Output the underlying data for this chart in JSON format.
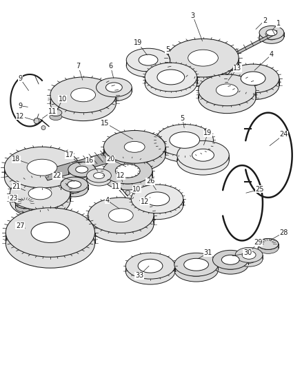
{
  "background_color": "#ffffff",
  "line_color": "#1a1a1a",
  "fig_width": 4.38,
  "fig_height": 5.33,
  "dpi": 100,
  "parts": {
    "shaft_color": "#888888",
    "gear_face": "#e8e8e8",
    "gear_dark": "#c0c0c0",
    "ring_color": "#d4d4d4"
  }
}
